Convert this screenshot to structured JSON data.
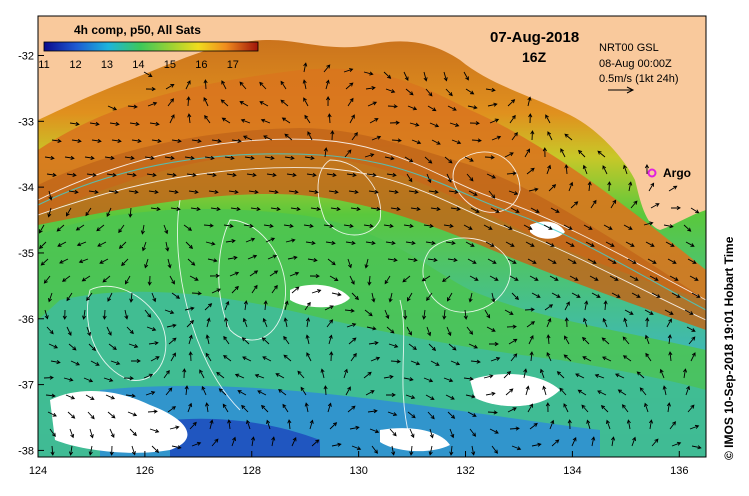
{
  "header": {
    "composite_label": "4h comp, p50, All Sats",
    "date": "07-Aug-2018",
    "time": "16Z"
  },
  "currents_legend": {
    "product": "NRT00 GSL",
    "valid": "08-Aug 00:00Z",
    "scale": "0.5m/s (1kt 24h)"
  },
  "marker": {
    "label": "Argo",
    "color": "#e020e0"
  },
  "credit": "© IMOS 10-Sep-2018 19:01 Hobart Time",
  "colorbar": {
    "ticks": [
      "11",
      "12",
      "13",
      "14",
      "15",
      "16",
      "17"
    ],
    "min": 11,
    "max": 17.8
  },
  "axes": {
    "x_ticks": [
      "124",
      "126",
      "128",
      "130",
      "132",
      "134",
      "136"
    ],
    "y_ticks": [
      "-32",
      "-33",
      "-34",
      "-35",
      "-36",
      "-37",
      "-38"
    ],
    "lon_range": [
      124,
      136.5
    ],
    "lat_range": [
      -38.1,
      -31.4
    ]
  },
  "colors": {
    "land": "#f9c99c",
    "warm": "#d2721c",
    "cool": "#1f4fbf"
  }
}
